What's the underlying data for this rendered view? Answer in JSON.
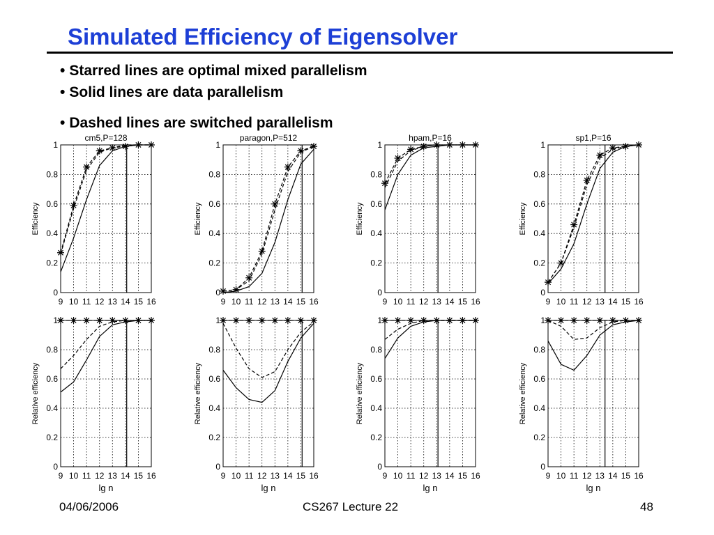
{
  "slide": {
    "title": "Simulated Efficiency of Eigensolver",
    "bullets": [
      "Starred lines are optimal mixed parallelism",
      "Solid lines are data parallelism",
      "Dashed lines are switched parallelism"
    ],
    "bullet_glyph": "•",
    "footer": {
      "date": "04/06/2006",
      "course": "CS267 Lecture 22",
      "page": "48"
    },
    "title_color": "#1d3fd6"
  },
  "chart_data": [
    {
      "type": "line",
      "title": "cm5,P=128",
      "xlabel": "",
      "ylabel": "Efficiency",
      "x": [
        9,
        10,
        11,
        12,
        13,
        14,
        15,
        16
      ],
      "xlim": [
        9,
        16
      ],
      "ylim": [
        0,
        1
      ],
      "yticks": [
        "0",
        "0.2",
        "0.4",
        "0.6",
        "0.8",
        "1"
      ],
      "grid": true,
      "vline_x": 14.1,
      "series": [
        {
          "style": "solid",
          "values": [
            0.14,
            0.37,
            0.63,
            0.86,
            0.96,
            0.99,
            1,
            1
          ]
        },
        {
          "style": "dashed",
          "values": [
            0.26,
            0.57,
            0.83,
            0.95,
            0.98,
            1,
            1,
            1
          ]
        },
        {
          "style": "star",
          "values": [
            0.27,
            0.59,
            0.85,
            0.96,
            0.98,
            0.99,
            1,
            1
          ]
        }
      ]
    },
    {
      "type": "line",
      "title": "paragon,P=512",
      "xlabel": "",
      "ylabel": "Efficiency",
      "x": [
        9,
        10,
        11,
        12,
        13,
        14,
        15,
        16
      ],
      "xlim": [
        9,
        16
      ],
      "ylim": [
        0,
        1
      ],
      "yticks": [
        "0",
        "0.2",
        "0.4",
        "0.6",
        "0.8",
        "1"
      ],
      "grid": true,
      "vline_x": 15.1,
      "series": [
        {
          "style": "solid",
          "values": [
            0,
            0.01,
            0.04,
            0.13,
            0.34,
            0.63,
            0.87,
            0.97
          ]
        },
        {
          "style": "dashed",
          "values": [
            0.01,
            0.02,
            0.08,
            0.26,
            0.56,
            0.82,
            0.95,
            0.99
          ]
        },
        {
          "style": "star",
          "values": [
            0.01,
            0.02,
            0.1,
            0.28,
            0.6,
            0.85,
            0.96,
            0.99
          ]
        }
      ]
    },
    {
      "type": "line",
      "title": "hpam,P=16",
      "xlabel": "",
      "ylabel": "Efficiency",
      "x": [
        9,
        10,
        11,
        12,
        13,
        14,
        15,
        16
      ],
      "xlim": [
        9,
        16
      ],
      "ylim": [
        0,
        1
      ],
      "yticks": [
        "0",
        "0.2",
        "0.4",
        "0.6",
        "0.8",
        "1"
      ],
      "grid": true,
      "vline_x": 13.1,
      "series": [
        {
          "style": "solid",
          "values": [
            0.56,
            0.8,
            0.93,
            0.98,
            0.99,
            1,
            1,
            1
          ]
        },
        {
          "style": "dashed",
          "values": [
            0.71,
            0.89,
            0.96,
            0.99,
            1,
            1,
            1,
            1
          ]
        },
        {
          "style": "star",
          "values": [
            0.74,
            0.91,
            0.97,
            0.99,
            1,
            1,
            1,
            1
          ]
        }
      ]
    },
    {
      "type": "line",
      "title": "sp1,P=16",
      "xlabel": "",
      "ylabel": "Efficiency",
      "x": [
        9,
        10,
        11,
        12,
        13,
        14,
        15,
        16
      ],
      "xlim": [
        9,
        16
      ],
      "ylim": [
        0,
        1
      ],
      "yticks": [
        "0",
        "0.2",
        "0.4",
        "0.6",
        "0.8",
        "1"
      ],
      "grid": true,
      "vline_x": 13.4,
      "series": [
        {
          "style": "solid",
          "values": [
            0.06,
            0.16,
            0.33,
            0.6,
            0.84,
            0.95,
            0.99,
            1
          ]
        },
        {
          "style": "dashed",
          "values": [
            0.07,
            0.2,
            0.44,
            0.73,
            0.91,
            0.97,
            0.99,
            1
          ]
        },
        {
          "style": "star",
          "values": [
            0.07,
            0.2,
            0.46,
            0.76,
            0.93,
            0.98,
            0.99,
            1
          ]
        }
      ]
    },
    {
      "type": "line",
      "title": "",
      "xlabel": "lg n",
      "ylabel": "Relative efficiency",
      "x": [
        9,
        10,
        11,
        12,
        13,
        14,
        15,
        16
      ],
      "xlim": [
        9,
        16
      ],
      "ylim": [
        0,
        1
      ],
      "yticks": [
        "0",
        "0.2",
        "0.4",
        "0.6",
        "0.8",
        "1"
      ],
      "grid": true,
      "vline_x": 14.1,
      "series": [
        {
          "style": "solid",
          "values": [
            0.51,
            0.58,
            0.73,
            0.89,
            0.97,
            0.99,
            1,
            1
          ]
        },
        {
          "style": "dashed",
          "values": [
            0.67,
            0.76,
            0.87,
            0.96,
            0.99,
            1,
            1,
            1
          ]
        },
        {
          "style": "star",
          "values": [
            1,
            1,
            1,
            1,
            1,
            1,
            1,
            1
          ]
        }
      ]
    },
    {
      "type": "line",
      "title": "",
      "xlabel": "lg n",
      "ylabel": "Relative efficiency",
      "x": [
        9,
        10,
        11,
        12,
        13,
        14,
        15,
        16
      ],
      "xlim": [
        9,
        16
      ],
      "ylim": [
        0,
        1
      ],
      "yticks": [
        "0",
        "0.2",
        "0.4",
        "0.6",
        "0.8",
        "1"
      ],
      "grid": true,
      "vline_x": 15.1,
      "series": [
        {
          "style": "solid",
          "values": [
            0.66,
            0.54,
            0.46,
            0.44,
            0.52,
            0.72,
            0.88,
            0.98
          ]
        },
        {
          "style": "dashed",
          "values": [
            0.98,
            0.81,
            0.67,
            0.61,
            0.65,
            0.8,
            0.92,
            0.99
          ]
        },
        {
          "style": "star",
          "values": [
            1,
            1,
            1,
            1,
            1,
            1,
            1,
            1
          ]
        }
      ]
    },
    {
      "type": "line",
      "title": "",
      "xlabel": "lg n",
      "ylabel": "Relative efficiency",
      "x": [
        9,
        10,
        11,
        12,
        13,
        14,
        15,
        16
      ],
      "xlim": [
        9,
        16
      ],
      "ylim": [
        0,
        1
      ],
      "yticks": [
        "0",
        "0.2",
        "0.4",
        "0.6",
        "0.8",
        "1"
      ],
      "grid": true,
      "vline_x": 13.1,
      "series": [
        {
          "style": "solid",
          "values": [
            0.74,
            0.88,
            0.96,
            0.99,
            1,
            1,
            1,
            1
          ]
        },
        {
          "style": "dashed",
          "values": [
            0.87,
            0.94,
            0.98,
            1,
            1,
            1,
            1,
            1
          ]
        },
        {
          "style": "star",
          "values": [
            1,
            1,
            1,
            1,
            1,
            1,
            1,
            1
          ]
        }
      ]
    },
    {
      "type": "line",
      "title": "",
      "xlabel": "lg n",
      "ylabel": "Relative efficiency",
      "x": [
        9,
        10,
        11,
        12,
        13,
        14,
        15,
        16
      ],
      "xlim": [
        9,
        16
      ],
      "ylim": [
        0,
        1
      ],
      "yticks": [
        "0",
        "0.2",
        "0.4",
        "0.6",
        "0.8",
        "1"
      ],
      "grid": true,
      "vline_x": 13.4,
      "series": [
        {
          "style": "solid",
          "values": [
            0.86,
            0.7,
            0.66,
            0.76,
            0.9,
            0.97,
            0.99,
            1
          ]
        },
        {
          "style": "dashed",
          "values": [
            1,
            0.96,
            0.87,
            0.88,
            0.95,
            0.99,
            1,
            1
          ]
        },
        {
          "style": "star",
          "values": [
            1,
            1,
            1,
            1,
            1,
            1,
            1,
            1
          ]
        }
      ]
    }
  ]
}
